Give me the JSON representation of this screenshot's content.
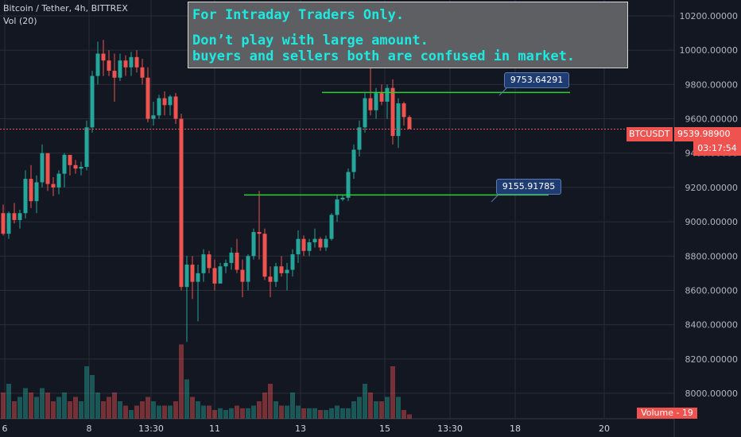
{
  "header": {
    "symbol_line": "Bitcoin / Tether, 4h, BITTREX",
    "volume_line": "Vol (20)"
  },
  "note": {
    "line1": "For Intraday Traders Only.",
    "line2": "Don’t play with large amount.",
    "line3": "buyers and sellers both are confused in market."
  },
  "price_axis": {
    "ticks": [
      "10200.00000",
      "10000.00000",
      "9800.00000",
      "9600.00000",
      "9400.00000",
      "9200.00000",
      "9000.00000",
      "8800.00000",
      "8600.00000",
      "8400.00000",
      "8200.00000",
      "8000.00000"
    ]
  },
  "time_axis": {
    "ticks": [
      "6",
      "8",
      "13:30",
      "11",
      "13",
      "15",
      "13:30",
      "18",
      "20"
    ]
  },
  "badges": {
    "symbol": "BTCUSDT",
    "last_price": "9539.98900",
    "timer": "03:17:54",
    "volume": "Volume - 19"
  },
  "annotations": {
    "upper_label": "9753.64291",
    "lower_label": "9155.91785"
  },
  "colors": {
    "up": "#26a69a",
    "down": "#ef5350",
    "background": "#131722",
    "grid": "#2a2e39",
    "level_line": "#28d32f",
    "note_text": "#1de9e0"
  },
  "chart_data": {
    "type": "candlestick",
    "title": "Bitcoin / Tether, 4h, BITTREX",
    "ylim": [
      7950,
      10320
    ],
    "grid": true,
    "levels": [
      9753.64291,
      9155.91785
    ],
    "last_price": 9539.989,
    "candles": [
      [
        9050,
        9100,
        8920,
        8930,
        0.3
      ],
      [
        8930,
        9060,
        8900,
        9050,
        0.4
      ],
      [
        9050,
        9110,
        8990,
        9010,
        0.2
      ],
      [
        9010,
        9070,
        8960,
        9050,
        0.25
      ],
      [
        9050,
        9300,
        9020,
        9250,
        0.35
      ],
      [
        9250,
        9330,
        9080,
        9120,
        0.3
      ],
      [
        9120,
        9270,
        9050,
        9230,
        0.25
      ],
      [
        9230,
        9450,
        9200,
        9400,
        0.35
      ],
      [
        9400,
        9390,
        9180,
        9220,
        0.3
      ],
      [
        9220,
        9260,
        9150,
        9200,
        0.2
      ],
      [
        9200,
        9300,
        9160,
        9280,
        0.25
      ],
      [
        9280,
        9400,
        9200,
        9390,
        0.3
      ],
      [
        9390,
        9380,
        9270,
        9330,
        0.2
      ],
      [
        9330,
        9360,
        9280,
        9310,
        0.25
      ],
      [
        9310,
        9350,
        9270,
        9320,
        0.2
      ],
      [
        9320,
        9590,
        9300,
        9550,
        0.6
      ],
      [
        9550,
        9880,
        9520,
        9850,
        0.5
      ],
      [
        9850,
        10050,
        9800,
        9980,
        0.3
      ],
      [
        9980,
        10060,
        9850,
        9940,
        0.2
      ],
      [
        9940,
        10000,
        9850,
        9880,
        0.25
      ],
      [
        9880,
        9980,
        9700,
        9840,
        0.3
      ],
      [
        9840,
        9980,
        9820,
        9940,
        0.2
      ],
      [
        9940,
        9970,
        9850,
        9900,
        0.15
      ],
      [
        9900,
        9990,
        9850,
        9960,
        0.1
      ],
      [
        9960,
        10000,
        9870,
        9900,
        0.15
      ],
      [
        9900,
        9950,
        9800,
        9840,
        0.2
      ],
      [
        9840,
        9900,
        9580,
        9600,
        0.25
      ],
      [
        9600,
        9700,
        9560,
        9620,
        0.2
      ],
      [
        9620,
        9740,
        9600,
        9720,
        0.15
      ],
      [
        9720,
        9760,
        9620,
        9680,
        0.15
      ],
      [
        9680,
        9740,
        9620,
        9730,
        0.15
      ],
      [
        9730,
        9750,
        9570,
        9600,
        0.2
      ],
      [
        9600,
        9630,
        8600,
        8620,
        0.85
      ],
      [
        8620,
        8800,
        8300,
        8750,
        0.45
      ],
      [
        8750,
        8800,
        8550,
        8650,
        0.25
      ],
      [
        8650,
        8750,
        8420,
        8700,
        0.2
      ],
      [
        8700,
        8840,
        8650,
        8810,
        0.15
      ],
      [
        8810,
        8830,
        8700,
        8730,
        0.15
      ],
      [
        8730,
        8780,
        8600,
        8640,
        0.1
      ],
      [
        8640,
        8760,
        8640,
        8740,
        0.12
      ],
      [
        8740,
        8780,
        8700,
        8760,
        0.1
      ],
      [
        8760,
        8850,
        8720,
        8820,
        0.12
      ],
      [
        8820,
        8900,
        8700,
        8720,
        0.15
      ],
      [
        8720,
        8780,
        8560,
        8650,
        0.12
      ],
      [
        8650,
        8810,
        8600,
        8800,
        0.12
      ],
      [
        8800,
        8960,
        8780,
        8940,
        0.15
      ],
      [
        8940,
        9180,
        8780,
        8930,
        0.2
      ],
      [
        8930,
        8960,
        8660,
        8680,
        0.3
      ],
      [
        8680,
        8740,
        8560,
        8650,
        0.4
      ],
      [
        8650,
        8760,
        8620,
        8740,
        0.2
      ],
      [
        8740,
        8800,
        8680,
        8700,
        0.15
      ],
      [
        8700,
        8760,
        8600,
        8720,
        0.15
      ],
      [
        8720,
        8840,
        8680,
        8810,
        0.3
      ],
      [
        8810,
        8950,
        8760,
        8900,
        0.15
      ],
      [
        8900,
        8920,
        8800,
        8830,
        0.12
      ],
      [
        8830,
        8900,
        8800,
        8880,
        0.12
      ],
      [
        8880,
        8960,
        8850,
        8900,
        0.12
      ],
      [
        8900,
        8910,
        8830,
        8850,
        0.1
      ],
      [
        8850,
        8920,
        8830,
        8900,
        0.1
      ],
      [
        8900,
        9050,
        8890,
        9040,
        0.12
      ],
      [
        9040,
        9160,
        9000,
        9130,
        0.15
      ],
      [
        9130,
        9160,
        9120,
        9140,
        0.12
      ],
      [
        9140,
        9310,
        9120,
        9290,
        0.12
      ],
      [
        9290,
        9450,
        9250,
        9420,
        0.2
      ],
      [
        9420,
        9590,
        9380,
        9550,
        0.25
      ],
      [
        9550,
        9750,
        9520,
        9720,
        0.4
      ],
      [
        9720,
        9940,
        9620,
        9650,
        0.3
      ],
      [
        9650,
        9780,
        9600,
        9750,
        0.2
      ],
      [
        9750,
        9800,
        9680,
        9700,
        0.2
      ],
      [
        9700,
        9800,
        9600,
        9780,
        0.25
      ],
      [
        9780,
        9830,
        9450,
        9500,
        0.6
      ],
      [
        9500,
        9720,
        9430,
        9690,
        0.25
      ],
      [
        9690,
        9700,
        9560,
        9610,
        0.1
      ],
      [
        9610,
        9620,
        9540,
        9540,
        0.05
      ]
    ]
  }
}
